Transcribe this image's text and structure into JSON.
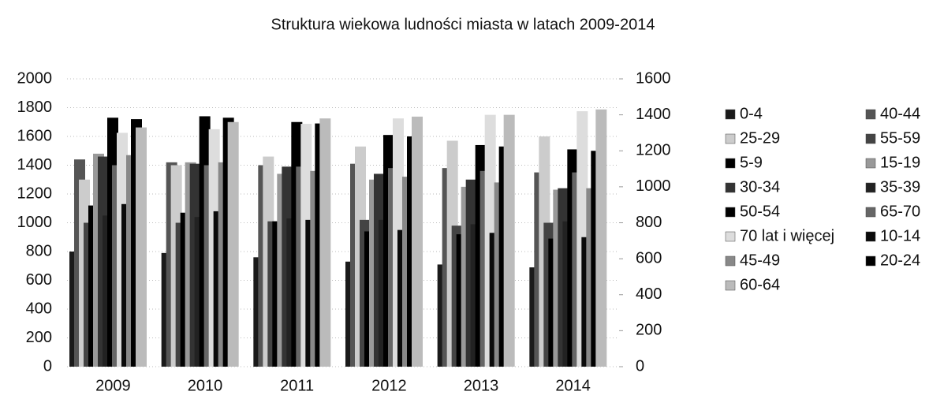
{
  "chart_data": {
    "type": "bar",
    "title": "Struktura wiekowa ludności miasta w latach 2009-2014",
    "categories": [
      "2009",
      "2010",
      "2011",
      "2012",
      "2013",
      "2014"
    ],
    "ylim": [
      0,
      2000
    ],
    "yticks": [
      0,
      200,
      400,
      600,
      800,
      1000,
      1200,
      1400,
      1600,
      1800,
      2000
    ],
    "y2lim": [
      0,
      1600
    ],
    "y2ticks": [
      0,
      200,
      400,
      600,
      800,
      1000,
      1200,
      1400,
      1600
    ],
    "grid": true,
    "series": [
      {
        "name": "0-4",
        "color": "#1a1a1a",
        "values": [
          800,
          790,
          760,
          730,
          710,
          690
        ]
      },
      {
        "name": "40-44",
        "color": "#555555",
        "values": [
          1440,
          1420,
          1400,
          1410,
          1380,
          1350
        ]
      },
      {
        "name": "25-29",
        "color": "#cccccc",
        "values": [
          1300,
          1400,
          1460,
          1530,
          1570,
          1600
        ]
      },
      {
        "name": "55-59",
        "color": "#444444",
        "values": [
          1000,
          1000,
          1010,
          1020,
          980,
          1000
        ]
      },
      {
        "name": "5-9",
        "color": "#000000",
        "values": [
          1120,
          1070,
          1010,
          940,
          920,
          890
        ]
      },
      {
        "name": "15-19",
        "color": "#999999",
        "values": [
          1480,
          1420,
          1340,
          1300,
          1250,
          1230
        ]
      },
      {
        "name": "30-34",
        "color": "#333333",
        "values": [
          1460,
          1410,
          1390,
          1340,
          1300,
          1240
        ]
      },
      {
        "name": "35-39",
        "color": "#222222",
        "values": [
          1050,
          1040,
          1030,
          1020,
          990,
          1010
        ]
      },
      {
        "name": "50-54",
        "color": "#000000",
        "values": [
          1730,
          1740,
          1700,
          1610,
          1540,
          1510
        ]
      },
      {
        "name": "65-70",
        "color": "#666666",
        "values": [
          1400,
          1400,
          1390,
          1380,
          1360,
          1350
        ]
      },
      {
        "name": "70 lat i więcej",
        "color": "#dddddd",
        "axis": "y2",
        "values": [
          1300,
          1320,
          1350,
          1380,
          1400,
          1420
        ]
      },
      {
        "name": "10-14",
        "color": "#0a0a0a",
        "values": [
          1130,
          1080,
          1020,
          950,
          930,
          900
        ]
      },
      {
        "name": "45-49",
        "color": "#888888",
        "values": [
          1470,
          1420,
          1360,
          1320,
          1280,
          1240
        ]
      },
      {
        "name": "20-24",
        "color": "#000000",
        "values": [
          1720,
          1730,
          1690,
          1600,
          1530,
          1500
        ]
      },
      {
        "name": "60-64",
        "color": "#bbbbbb",
        "axis": "y2",
        "values": [
          1330,
          1360,
          1380,
          1390,
          1400,
          1430
        ]
      }
    ]
  }
}
